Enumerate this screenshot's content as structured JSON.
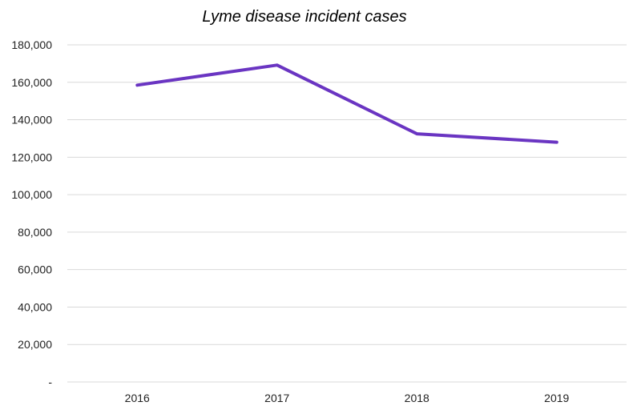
{
  "chart_data": {
    "type": "line",
    "title": "Lyme disease incident cases",
    "xlabel": "",
    "ylabel": "",
    "categories": [
      "2016",
      "2017",
      "2018",
      "2019"
    ],
    "series": [
      {
        "values": [
          158500,
          169200,
          132500,
          128000
        ],
        "color": "#6a35c2"
      }
    ],
    "ylim": [
      0,
      180000
    ],
    "yticks": [
      0,
      20000,
      40000,
      60000,
      80000,
      100000,
      120000,
      140000,
      160000,
      180000
    ],
    "ytick_labels": [
      "-",
      "20,000",
      "40,000",
      "60,000",
      "80,000",
      "100,000",
      "120,000",
      "140,000",
      "160,000",
      "180,000"
    ],
    "grid": true,
    "legend": "none"
  }
}
